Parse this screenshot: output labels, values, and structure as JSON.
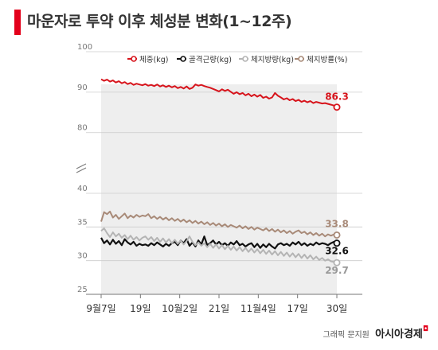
{
  "title": "마운자로 투약 이후 체성분 변화(1~12주)",
  "credit": {
    "text": "그래픽 문지원",
    "brand": "아시아경제"
  },
  "colors": {
    "red": "#d7141c",
    "black": "#111111",
    "gray": "#b4b4b4",
    "brown": "#a88a78",
    "plot_bg": "#eeeeee"
  },
  "chart_data": {
    "type": "line",
    "x_ticks": [
      "9월7일",
      "19일",
      "10월2일",
      "21일",
      "11월4일",
      "17일",
      "30일"
    ],
    "y_upper": {
      "ticks": [
        "100",
        "90",
        "80"
      ],
      "ylim": [
        77,
        100
      ]
    },
    "y_lower": {
      "ticks": [
        "40",
        "35",
        "30",
        "25"
      ],
      "ylim": [
        25,
        40
      ]
    },
    "legend": [
      "체중(kg)",
      "골격근량(kg)",
      "체지방량(kg)",
      "체지방률(%)"
    ],
    "series": [
      {
        "name": "체중(kg)",
        "color": "#d7141c",
        "end_label": "86.3",
        "values": [
          93.2,
          92.8,
          93.1,
          92.6,
          92.9,
          92.4,
          92.7,
          92.2,
          92.5,
          92.0,
          92.3,
          91.8,
          92.1,
          91.9,
          91.7,
          92.0,
          91.6,
          91.8,
          91.5,
          91.9,
          91.4,
          91.7,
          91.3,
          91.6,
          91.2,
          91.5,
          91.0,
          91.3,
          90.9,
          91.4,
          90.8,
          91.1,
          91.9,
          91.6,
          91.8,
          91.5,
          91.3,
          91.1,
          90.8,
          90.5,
          90.2,
          90.7,
          90.3,
          90.6,
          90.1,
          89.6,
          90.0,
          89.5,
          89.8,
          89.2,
          89.6,
          89.0,
          89.4,
          88.9,
          89.3,
          88.6,
          88.9,
          88.4,
          88.7,
          89.8,
          89.1,
          88.7,
          88.2,
          88.5,
          88.0,
          88.3,
          87.8,
          88.1,
          87.6,
          87.9,
          87.5,
          87.8,
          87.3,
          87.6,
          87.4,
          87.2,
          87.3,
          87.1,
          86.9,
          86.7,
          86.3
        ]
      },
      {
        "name": "골격근량(kg)",
        "color": "#111111",
        "end_label": "32.6",
        "values": [
          33.4,
          32.6,
          33.0,
          32.4,
          33.1,
          32.5,
          32.9,
          32.3,
          33.2,
          32.7,
          32.4,
          32.8,
          32.2,
          32.5,
          32.3,
          32.4,
          32.2,
          32.6,
          32.3,
          32.7,
          32.4,
          32.1,
          32.5,
          32.2,
          32.6,
          32.8,
          32.3,
          33.0,
          32.6,
          33.2,
          32.2,
          32.7,
          32.1,
          33.0,
          32.4,
          33.6,
          32.3,
          32.6,
          33.0,
          32.4,
          32.8,
          32.3,
          32.6,
          32.2,
          32.7,
          32.4,
          32.9,
          32.3,
          32.5,
          32.1,
          32.4,
          32.6,
          32.0,
          32.5,
          31.9,
          32.4,
          32.0,
          32.5,
          32.1,
          31.8,
          32.4,
          32.6,
          32.3,
          32.5,
          32.2,
          32.7,
          32.4,
          32.8,
          32.3,
          32.6,
          32.2,
          32.5,
          32.3,
          32.7,
          32.4,
          32.6,
          32.5,
          32.3,
          32.6,
          32.8,
          32.6
        ]
      },
      {
        "name": "체지방량(kg)",
        "color": "#b4b4b4",
        "end_label": "29.7",
        "values": [
          34.4,
          34.8,
          34.1,
          33.5,
          34.2,
          33.6,
          34.0,
          33.4,
          33.8,
          33.2,
          33.7,
          33.1,
          33.5,
          33.0,
          33.4,
          33.6,
          33.1,
          33.5,
          32.9,
          33.4,
          32.8,
          33.3,
          32.7,
          33.2,
          32.6,
          33.1,
          32.5,
          33.0,
          32.4,
          32.9,
          33.6,
          32.8,
          32.3,
          32.7,
          32.2,
          32.6,
          32.0,
          32.5,
          31.9,
          32.4,
          31.8,
          32.3,
          31.7,
          32.2,
          31.6,
          32.1,
          31.5,
          32.0,
          31.4,
          31.9,
          31.3,
          31.8,
          31.2,
          31.7,
          31.1,
          31.6,
          31.0,
          31.5,
          30.9,
          31.4,
          30.8,
          31.3,
          30.7,
          31.2,
          30.6,
          31.1,
          30.5,
          31.0,
          30.4,
          30.9,
          30.3,
          30.8,
          30.2,
          30.6,
          30.1,
          30.4,
          30.0,
          30.2,
          29.9,
          29.8,
          29.7
        ]
      },
      {
        "name": "체지방률(%)",
        "color": "#a88a78",
        "end_label": "33.8",
        "values": [
          35.8,
          37.2,
          36.9,
          37.3,
          36.4,
          36.8,
          36.2,
          36.6,
          37.0,
          36.3,
          36.7,
          36.4,
          36.8,
          36.5,
          36.7,
          36.6,
          36.9,
          36.3,
          36.6,
          36.2,
          36.5,
          36.1,
          36.4,
          36.0,
          36.3,
          35.9,
          36.2,
          35.8,
          36.1,
          35.7,
          36.0,
          35.6,
          35.9,
          35.5,
          35.8,
          35.4,
          35.7,
          35.3,
          35.6,
          35.2,
          35.5,
          35.1,
          35.4,
          35.0,
          35.3,
          35.1,
          34.9,
          35.2,
          34.8,
          35.1,
          34.7,
          35.0,
          34.6,
          34.9,
          34.7,
          34.5,
          34.8,
          34.4,
          34.7,
          34.3,
          34.6,
          34.2,
          34.5,
          34.1,
          34.4,
          34.0,
          34.3,
          34.5,
          34.1,
          34.3,
          33.9,
          34.2,
          33.8,
          34.1,
          33.7,
          34.0,
          33.6,
          33.9,
          33.7,
          33.9,
          33.8
        ]
      }
    ]
  }
}
